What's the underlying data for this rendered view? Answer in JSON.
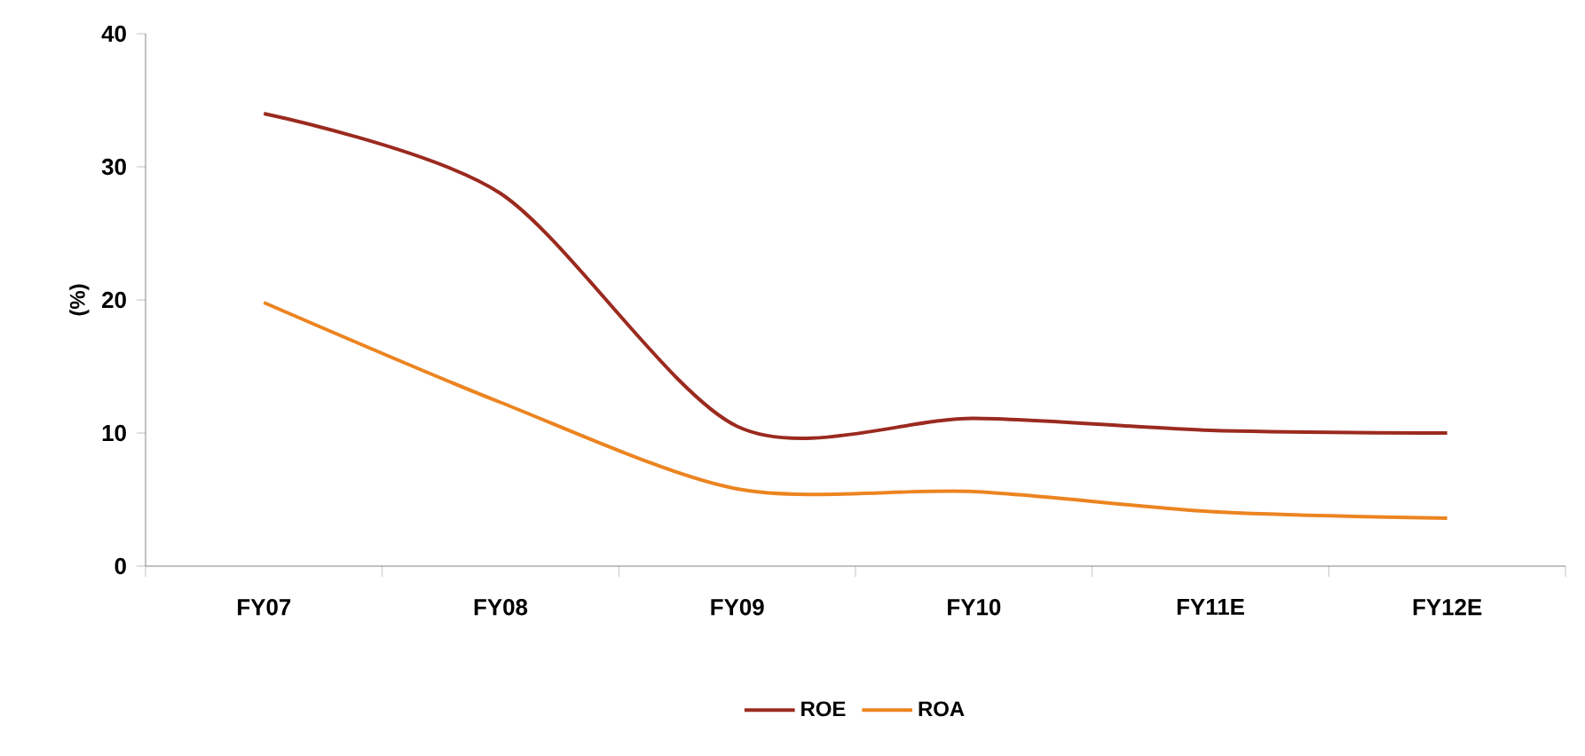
{
  "chart_data": {
    "type": "line",
    "ylabel": "(%)",
    "categories": [
      "FY07",
      "FY08",
      "FY09",
      "FY10",
      "FY11E",
      "FY12E"
    ],
    "series": [
      {
        "name": "ROE",
        "color": "#9b2a1f",
        "values": [
          34,
          28,
          10.5,
          11.1,
          10.2,
          10.0
        ]
      },
      {
        "name": "ROA",
        "color": "#ec8420",
        "values": [
          19.8,
          12.3,
          5.8,
          5.6,
          4.1,
          3.6
        ]
      }
    ],
    "ylim": [
      0,
      40
    ],
    "yticks": [
      0,
      10,
      20,
      30,
      40
    ],
    "legend": "bottom",
    "grid": false,
    "marker": "none",
    "line_style": "solid"
  }
}
